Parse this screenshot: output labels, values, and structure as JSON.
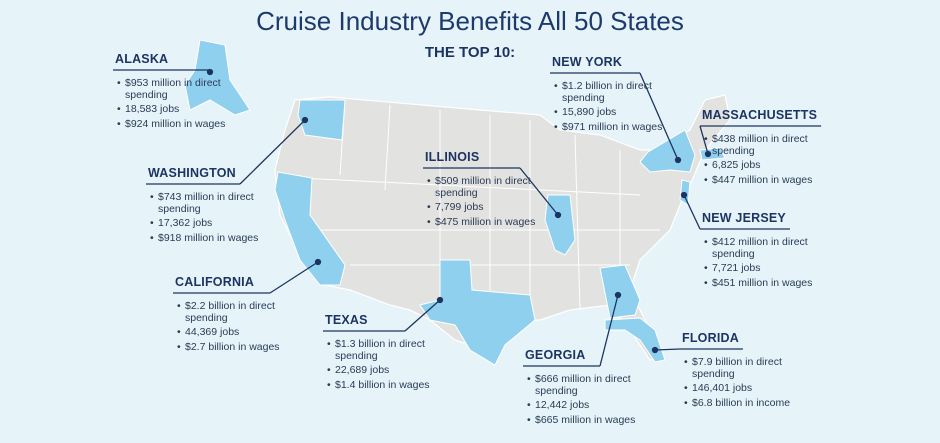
{
  "header": {
    "title": "Cruise Industry Benefits All 50 States",
    "subtitle": "THE TOP 10:"
  },
  "states": [
    {
      "name": "ALASKA",
      "facts": [
        "$953 million in direct spending",
        "18,583 jobs",
        "$924 million in wages"
      ]
    },
    {
      "name": "WASHINGTON",
      "facts": [
        "$743 million in direct spending",
        "17,362 jobs",
        "$918 million in wages"
      ]
    },
    {
      "name": "CALIFORNIA",
      "facts": [
        "$2.2 billion in direct spending",
        "44,369 jobs",
        "$2.7 billion in wages"
      ]
    },
    {
      "name": "TEXAS",
      "facts": [
        "$1.3 billion in direct spending",
        "22,689 jobs",
        "$1.4 billion in wages"
      ]
    },
    {
      "name": "ILLINOIS",
      "facts": [
        "$509 million in direct spending",
        "7,799 jobs",
        "$475 million in wages"
      ]
    },
    {
      "name": "NEW YORK",
      "facts": [
        "$1.2 billion in direct spending",
        "15,890 jobs",
        "$971 million in wages"
      ]
    },
    {
      "name": "MASSACHUSETTS",
      "facts": [
        "$438 million in direct spending",
        "6,825 jobs",
        "$447 million in wages"
      ]
    },
    {
      "name": "NEW JERSEY",
      "facts": [
        "$412 million in direct spending",
        "7,721 jobs",
        "$451 million in wages"
      ]
    },
    {
      "name": "GEORGIA",
      "facts": [
        "$666 million in direct spending",
        "12,442 jobs",
        "$665 million in wages"
      ]
    },
    {
      "name": "FLORIDA",
      "facts": [
        "$7.9 billion in direct spending",
        "146,401 jobs",
        "$6.8 billion in income"
      ]
    }
  ]
}
